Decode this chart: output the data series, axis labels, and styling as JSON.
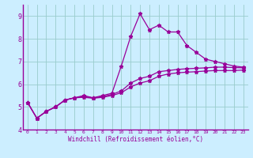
{
  "title": "",
  "xlabel": "Windchill (Refroidissement éolien,°C)",
  "ylabel": "",
  "bg_color": "#cceeff",
  "line_color": "#990099",
  "grid_color": "#99cccc",
  "xlim": [
    -0.5,
    23.5
  ],
  "ylim": [
    4,
    9.5
  ],
  "yticks": [
    4,
    5,
    6,
    7,
    8,
    9
  ],
  "xticks": [
    0,
    1,
    2,
    3,
    4,
    5,
    6,
    7,
    8,
    9,
    10,
    11,
    12,
    13,
    14,
    15,
    16,
    17,
    18,
    19,
    20,
    21,
    22,
    23
  ],
  "series1_x": [
    0,
    1,
    2,
    3,
    4,
    5,
    6,
    7,
    8,
    9,
    10,
    11,
    12,
    13,
    14,
    15,
    16,
    17,
    18,
    19,
    20,
    21,
    22,
    23
  ],
  "series1_y": [
    5.2,
    4.5,
    4.8,
    5.0,
    5.3,
    5.4,
    5.5,
    5.4,
    5.5,
    5.6,
    6.8,
    8.1,
    9.1,
    8.4,
    8.6,
    8.3,
    8.3,
    7.7,
    7.4,
    7.1,
    7.0,
    6.9,
    6.8,
    6.75
  ],
  "series2_x": [
    0,
    1,
    2,
    3,
    4,
    5,
    6,
    7,
    8,
    9,
    10,
    11,
    12,
    13,
    14,
    15,
    16,
    17,
    18,
    19,
    20,
    21,
    22,
    23
  ],
  "series2_y": [
    5.2,
    4.5,
    4.8,
    5.0,
    5.3,
    5.4,
    5.45,
    5.4,
    5.45,
    5.55,
    5.7,
    6.05,
    6.25,
    6.35,
    6.55,
    6.6,
    6.65,
    6.68,
    6.7,
    6.72,
    6.75,
    6.75,
    6.73,
    6.72
  ],
  "series3_x": [
    0,
    1,
    2,
    3,
    4,
    5,
    6,
    7,
    8,
    9,
    10,
    11,
    12,
    13,
    14,
    15,
    16,
    17,
    18,
    19,
    20,
    21,
    22,
    23
  ],
  "series3_y": [
    5.2,
    4.5,
    4.8,
    5.0,
    5.3,
    5.4,
    5.42,
    5.38,
    5.42,
    5.5,
    5.62,
    5.88,
    6.05,
    6.15,
    6.35,
    6.45,
    6.5,
    6.53,
    6.55,
    6.58,
    6.6,
    6.6,
    6.6,
    6.62
  ]
}
